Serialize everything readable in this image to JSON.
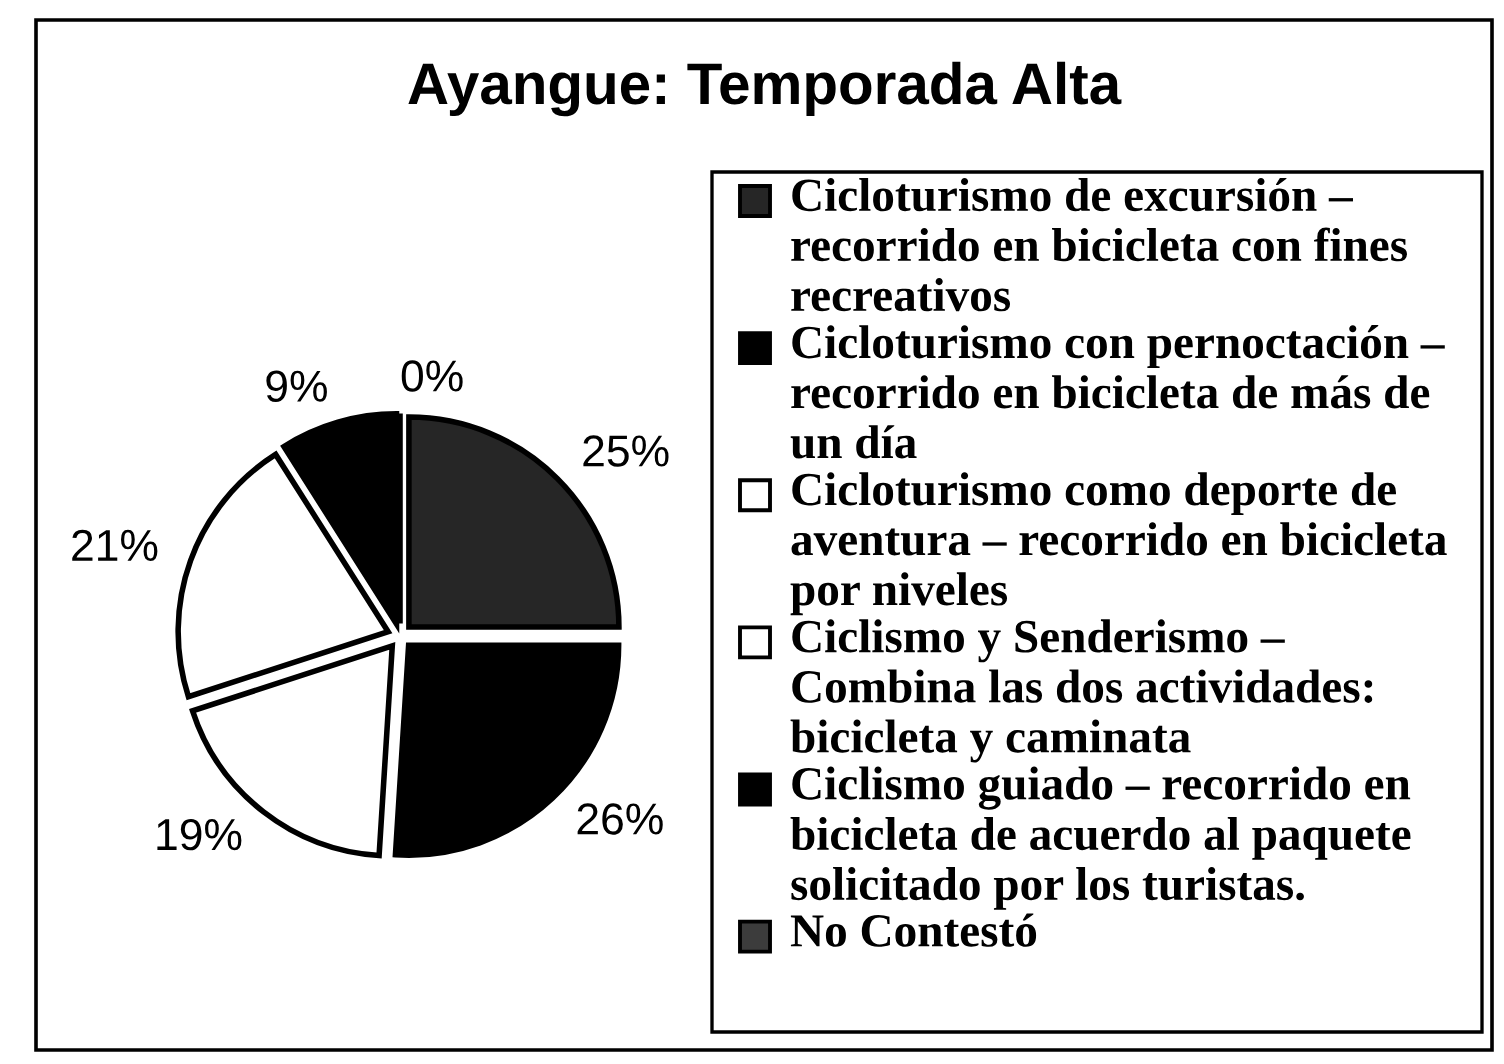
{
  "chart_data": {
    "type": "pie",
    "title": "Ayangue: Temporada Alta",
    "categories": [
      "Cicloturismo de excursión – recorrido en bicicleta con fines recreativos",
      "Cicloturismo con pernoctación – recorrido en bicicleta de más de un día",
      "Cicloturismo como deporte de aventura – recorrido en bicicleta por niveles",
      "Ciclismo y Senderismo – Combina las dos actividades: bicicleta y caminata",
      "Ciclismo guiado – recorrido en bicicleta de acuerdo al paquete solicitado por los turistas.",
      "No Contestó"
    ],
    "values": [
      25,
      26,
      19,
      21,
      9,
      0
    ],
    "value_labels": [
      "25%",
      "26%",
      "19%",
      "21%",
      "9%",
      "0%"
    ],
    "colors": [
      "#262626",
      "#000000",
      "#ffffff",
      "#ffffff",
      "#000000",
      "#3c3c3c"
    ],
    "legend": "right"
  }
}
